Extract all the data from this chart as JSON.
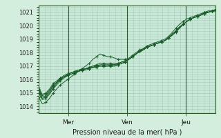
{
  "xlabel": "Pression niveau de la mer( hPa )",
  "bg_color": "#d4eedd",
  "plot_bg_color": "#c8e8d8",
  "grid_color": "#aaccbb",
  "line_color": "#1a5c2a",
  "xlim": [
    0,
    1
  ],
  "ylim": [
    1013.5,
    1021.5
  ],
  "yticks": [
    1014,
    1015,
    1016,
    1017,
    1018,
    1019,
    1020,
    1021
  ],
  "vline_positions": [
    0.1667,
    0.5,
    0.8333
  ],
  "vline_labels": [
    "Mer",
    "Ven",
    "Jeu"
  ],
  "series": [
    [
      1014.7,
      1014.2,
      1014.3,
      1014.6,
      1015.0,
      1015.3,
      1015.6,
      1015.8,
      1016.0,
      1016.2,
      1016.4,
      1016.6,
      1016.8,
      1017.0,
      1017.2,
      1017.5,
      1017.7,
      1017.9,
      1017.8,
      1017.7,
      1017.7,
      1017.6,
      1017.5,
      1017.5,
      1017.5,
      1017.6,
      1017.8,
      1018.0,
      1018.2,
      1018.3,
      1018.5,
      1018.6,
      1018.7,
      1018.8,
      1018.9,
      1019.0,
      1019.2,
      1019.5,
      1019.8,
      1020.1,
      1020.3,
      1020.5,
      1020.6,
      1020.7,
      1020.8,
      1020.9,
      1021.0,
      1021.0,
      1021.1,
      1021.1
    ],
    [
      1015.0,
      1014.5,
      1014.6,
      1014.9,
      1015.3,
      1015.6,
      1015.9,
      1016.1,
      1016.3,
      1016.4,
      1016.5,
      1016.6,
      1016.7,
      1016.8,
      1016.9,
      1017.0,
      1017.1,
      1017.2,
      1017.2,
      1017.2,
      1017.2,
      1017.2,
      1017.2,
      1017.3,
      1017.4,
      1017.5,
      1017.7,
      1017.9,
      1018.1,
      1018.3,
      1018.4,
      1018.5,
      1018.6,
      1018.7,
      1018.8,
      1018.9,
      1019.1,
      1019.3,
      1019.6,
      1019.9,
      1020.1,
      1020.3,
      1020.5,
      1020.6,
      1020.7,
      1020.8,
      1020.9,
      1021.0,
      1021.1,
      1021.1
    ],
    [
      1015.1,
      1014.6,
      1014.7,
      1015.0,
      1015.4,
      1015.7,
      1016.0,
      1016.2,
      1016.3,
      1016.4,
      1016.5,
      1016.6,
      1016.7,
      1016.8,
      1016.9,
      1017.0,
      1017.0,
      1017.1,
      1017.1,
      1017.1,
      1017.1,
      1017.1,
      1017.1,
      1017.2,
      1017.3,
      1017.5,
      1017.7,
      1017.9,
      1018.1,
      1018.2,
      1018.4,
      1018.5,
      1018.6,
      1018.7,
      1018.8,
      1018.9,
      1019.1,
      1019.3,
      1019.5,
      1019.8,
      1020.1,
      1020.3,
      1020.5,
      1020.6,
      1020.7,
      1020.8,
      1020.9,
      1021.0,
      1021.1,
      1021.1
    ],
    [
      1015.2,
      1014.7,
      1014.8,
      1015.1,
      1015.5,
      1015.8,
      1016.0,
      1016.2,
      1016.4,
      1016.5,
      1016.6,
      1016.6,
      1016.7,
      1016.7,
      1016.8,
      1016.9,
      1017.0,
      1017.0,
      1017.0,
      1017.0,
      1017.0,
      1017.0,
      1017.1,
      1017.2,
      1017.3,
      1017.5,
      1017.7,
      1017.9,
      1018.1,
      1018.2,
      1018.4,
      1018.5,
      1018.6,
      1018.7,
      1018.8,
      1018.9,
      1019.1,
      1019.3,
      1019.6,
      1019.8,
      1020.1,
      1020.3,
      1020.5,
      1020.6,
      1020.7,
      1020.8,
      1020.9,
      1021.0,
      1021.1,
      1021.2
    ],
    [
      1015.3,
      1014.8,
      1014.9,
      1015.2,
      1015.6,
      1015.8,
      1016.1,
      1016.2,
      1016.4,
      1016.5,
      1016.6,
      1016.7,
      1016.7,
      1016.8,
      1016.8,
      1016.9,
      1016.9,
      1017.0,
      1017.0,
      1017.0,
      1017.0,
      1017.0,
      1017.1,
      1017.2,
      1017.3,
      1017.5,
      1017.7,
      1017.9,
      1018.1,
      1018.2,
      1018.4,
      1018.5,
      1018.6,
      1018.7,
      1018.8,
      1018.9,
      1019.1,
      1019.3,
      1019.6,
      1019.9,
      1020.1,
      1020.3,
      1020.5,
      1020.6,
      1020.7,
      1020.8,
      1021.0,
      1021.0,
      1021.1,
      1021.2
    ],
    [
      1015.4,
      1014.9,
      1015.0,
      1015.3,
      1015.7,
      1015.9,
      1016.1,
      1016.3,
      1016.4,
      1016.5,
      1016.6,
      1016.7,
      1016.8,
      1016.8,
      1016.9,
      1016.9,
      1017.0,
      1017.0,
      1017.0,
      1017.0,
      1017.1,
      1017.1,
      1017.2,
      1017.3,
      1017.4,
      1017.5,
      1017.7,
      1017.9,
      1018.1,
      1018.2,
      1018.4,
      1018.5,
      1018.6,
      1018.7,
      1018.8,
      1018.9,
      1019.1,
      1019.4,
      1019.6,
      1019.9,
      1020.1,
      1020.3,
      1020.5,
      1020.6,
      1020.7,
      1020.8,
      1021.0,
      1021.1,
      1021.1,
      1021.2
    ]
  ]
}
